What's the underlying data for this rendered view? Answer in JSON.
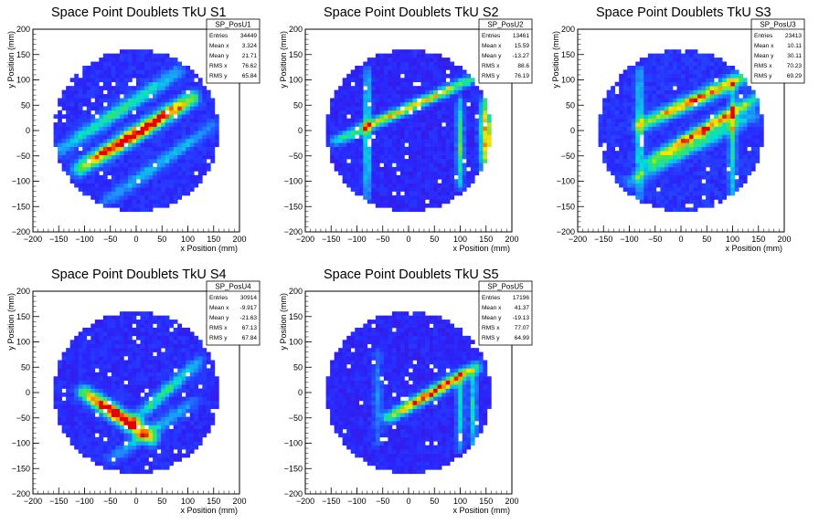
{
  "common": {
    "xlabel": "x Position (mm)",
    "ylabel": "y Position (mm)",
    "ticks": [
      "−200",
      "−150",
      "−100",
      "−50",
      "0",
      "50",
      "100",
      "150",
      "200"
    ],
    "stat_labels": [
      "Entries",
      "Mean x",
      "Mean y",
      "RMS x",
      "RMS y"
    ]
  },
  "chart_data": [
    {
      "type": "heatmap",
      "title": "Space Point Doublets TkU S1",
      "stat_name": "SP_PosU1",
      "stats": [
        "34449",
        "3.324",
        "21.71",
        "76.62",
        "65.84"
      ],
      "xlabel": "x Position (mm)",
      "ylabel": "y Position (mm)",
      "xlim": [
        -200,
        200
      ],
      "ylim": [
        -200,
        200
      ],
      "detector_radius": 160,
      "bands": [
        {
          "x1": -110,
          "y1": -75,
          "x2": 110,
          "y2": 65,
          "width": 10,
          "peak": 1.0
        },
        {
          "x1": -150,
          "y1": -40,
          "x2": 80,
          "y2": 115,
          "width": 9,
          "peak": 0.45
        },
        {
          "x1": -60,
          "y1": -140,
          "x2": 150,
          "y2": 10,
          "width": 8,
          "peak": 0.3
        }
      ],
      "background": 0.12
    },
    {
      "type": "heatmap",
      "title": "Space Point Doublets TkU S2",
      "stat_name": "SP_PosU2",
      "stats": [
        "13461",
        "15.59",
        "-13.27",
        "88.6",
        "76.19"
      ],
      "xlabel": "x Position (mm)",
      "ylabel": "y Position (mm)",
      "xlim": [
        -200,
        200
      ],
      "ylim": [
        -200,
        200
      ],
      "detector_radius": 160,
      "bands": [
        {
          "x1": -140,
          "y1": -20,
          "x2": 140,
          "y2": 110,
          "width": 7,
          "peak": 0.7
        },
        {
          "x1": -80,
          "y1": -130,
          "x2": -80,
          "y2": 120,
          "width": 5,
          "peak": 0.45
        },
        {
          "x1": 100,
          "y1": -110,
          "x2": 100,
          "y2": 60,
          "width": 5,
          "peak": 0.5
        },
        {
          "x1": 150,
          "y1": -80,
          "x2": 150,
          "y2": 60,
          "width": 8,
          "peak": 0.75
        }
      ],
      "background": 0.1
    },
    {
      "type": "heatmap",
      "title": "Space Point Doublets TkU S3",
      "stat_name": "SP_PosU3",
      "stats": [
        "23413",
        "10.11",
        "30.11",
        "70.23",
        "69.29"
      ],
      "xlabel": "x Position (mm)",
      "ylabel": "y Position (mm)",
      "xlim": [
        -200,
        200
      ],
      "ylim": [
        -200,
        200
      ],
      "detector_radius": 160,
      "bands": [
        {
          "x1": -80,
          "y1": 10,
          "x2": 130,
          "y2": 110,
          "width": 9,
          "peak": 0.75
        },
        {
          "x1": -60,
          "y1": -60,
          "x2": 140,
          "y2": 60,
          "width": 8,
          "peak": 0.8
        },
        {
          "x1": -80,
          "y1": -130,
          "x2": -80,
          "y2": 120,
          "width": 5,
          "peak": 0.4
        },
        {
          "x1": 100,
          "y1": -130,
          "x2": 100,
          "y2": 100,
          "width": 5,
          "peak": 0.4
        },
        {
          "x1": -100,
          "y1": -100,
          "x2": 140,
          "y2": 30,
          "width": 8,
          "peak": 0.4
        }
      ],
      "background": 0.13
    },
    {
      "type": "heatmap",
      "title": "Space Point Doublets TkU S4",
      "stat_name": "SP_PosU4",
      "stats": [
        "30914",
        "-9.917",
        "-21.63",
        "67.13",
        "67.84"
      ],
      "xlabel": "x Position (mm)",
      "ylabel": "y Position (mm)",
      "xlim": [
        -200,
        200
      ],
      "ylim": [
        -200,
        200
      ],
      "detector_radius": 160,
      "bands": [
        {
          "x1": -100,
          "y1": 0,
          "x2": 30,
          "y2": -90,
          "width": 10,
          "peak": 1.0
        },
        {
          "x1": -10,
          "y1": -60,
          "x2": 120,
          "y2": 60,
          "width": 8,
          "peak": 0.45
        },
        {
          "x1": -50,
          "y1": -130,
          "x2": 110,
          "y2": -20,
          "width": 8,
          "peak": 0.3
        }
      ],
      "background": 0.11
    },
    {
      "type": "heatmap",
      "title": "Space Point Doublets TkU S5",
      "stat_name": "SP_PosU5",
      "stats": [
        "17196",
        "41.37",
        "-19.13",
        "77.07",
        "64.99"
      ],
      "xlabel": "x Position (mm)",
      "ylabel": "y Position (mm)",
      "xlim": [
        -200,
        200
      ],
      "ylim": [
        -200,
        200
      ],
      "detector_radius": 160,
      "bands": [
        {
          "x1": -40,
          "y1": -50,
          "x2": 130,
          "y2": 50,
          "width": 8,
          "peak": 0.85
        },
        {
          "x1": 100,
          "y1": -110,
          "x2": 100,
          "y2": 40,
          "width": 5,
          "peak": 0.4
        },
        {
          "x1": 125,
          "y1": -110,
          "x2": 125,
          "y2": 40,
          "width": 5,
          "peak": 0.4
        },
        {
          "x1": -60,
          "y1": -100,
          "x2": -60,
          "y2": 80,
          "width": 6,
          "peak": 0.2
        }
      ],
      "background": 0.1
    }
  ]
}
